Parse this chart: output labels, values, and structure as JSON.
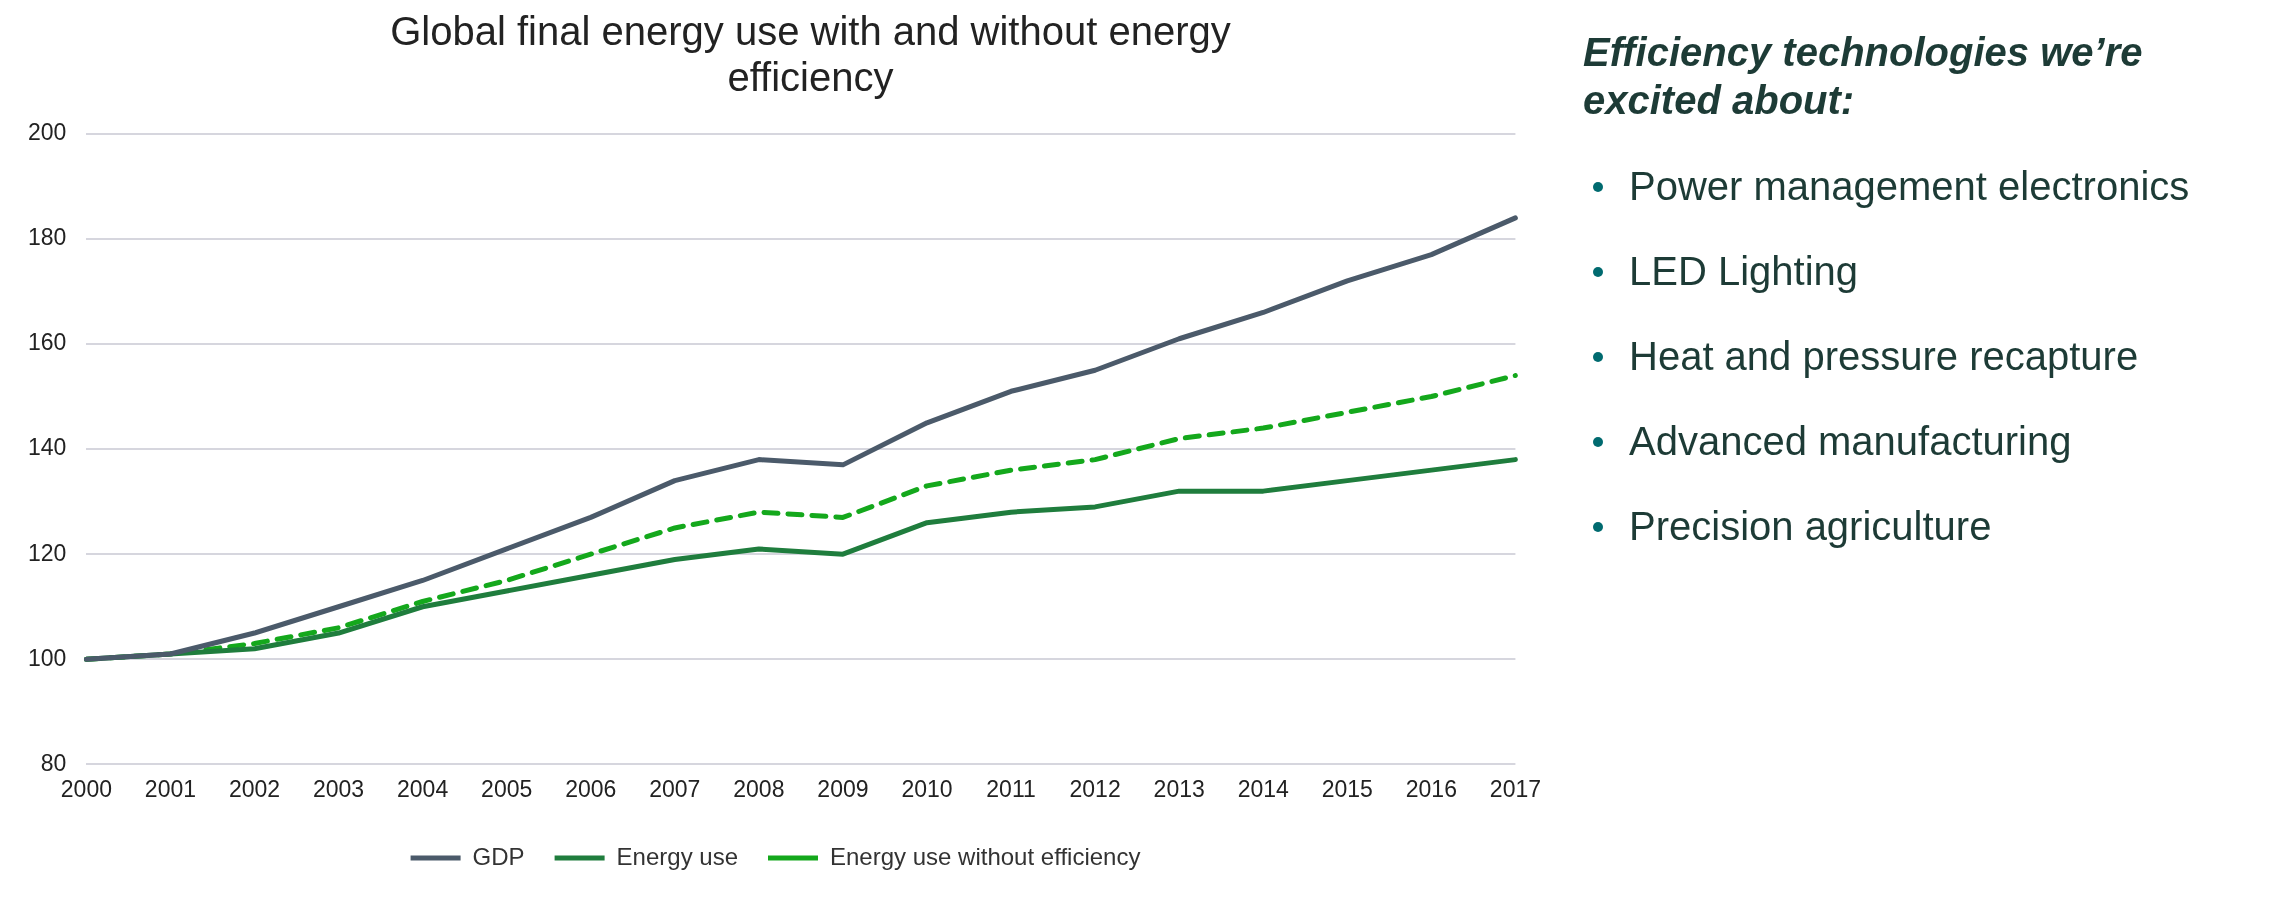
{
  "chart_data": {
    "type": "line",
    "title": "Global final energy use with and without energy efficiency",
    "categories": [
      "2000",
      "2001",
      "2002",
      "2003",
      "2004",
      "2005",
      "2006",
      "2007",
      "2008",
      "2009",
      "2010",
      "2011",
      "2012",
      "2013",
      "2014",
      "2015",
      "2016",
      "2017"
    ],
    "series": [
      {
        "name": "GDP",
        "color": "#4b5a6a",
        "line_style": "solid",
        "values": [
          100,
          101,
          105,
          110,
          115,
          121,
          127,
          134,
          138,
          137,
          145,
          151,
          155,
          161,
          166,
          172,
          177,
          184
        ]
      },
      {
        "name": "Energy use",
        "color": "#1f7d3d",
        "line_style": "solid",
        "values": [
          100,
          101,
          102,
          105,
          110,
          113,
          116,
          119,
          121,
          120,
          126,
          128,
          129,
          132,
          132,
          134,
          136,
          138
        ]
      },
      {
        "name": "Energy use without efficiency",
        "color": "#14a81c",
        "line_style": "dashed",
        "values": [
          100,
          101,
          103,
          106,
          111,
          115,
          120,
          125,
          128,
          127,
          133,
          136,
          138,
          142,
          144,
          147,
          150,
          154
        ]
      }
    ],
    "ylim": [
      80,
      200
    ],
    "yticks": [
      80,
      100,
      120,
      140,
      160,
      180,
      200
    ],
    "grid": "y",
    "legend": "bottom",
    "marker": "none",
    "annotations": [
      "Efficiency technologies we’re excited about:",
      "Power management electronics",
      "LED Lighting",
      "Heat and pressure recapture",
      "Advanced manufacturing",
      "Precision agriculture"
    ]
  }
}
